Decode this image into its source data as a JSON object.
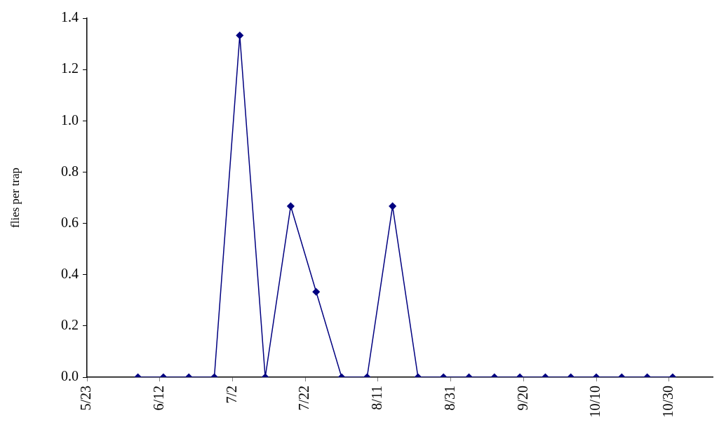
{
  "chart_data": {
    "type": "line",
    "ylabel": "flies per trap",
    "x": [
      "--06-06",
      "--06-13",
      "--06-20",
      "--06-27",
      "--07-04",
      "--07-11",
      "--07-18",
      "--07-25",
      "--08-01",
      "--08-08",
      "--08-15",
      "--08-22",
      "--08-29",
      "--09-05",
      "--09-12",
      "--09-19",
      "--09-26",
      "--10-03",
      "--10-10",
      "--10-17",
      "--10-24",
      "--10-31"
    ],
    "series": [
      {
        "color": "#000080",
        "values": [
          0,
          0,
          0,
          0,
          1.333,
          0,
          0.667,
          0.333,
          0,
          0,
          0.667,
          0,
          0,
          0,
          0,
          0,
          0,
          0,
          0,
          0,
          0,
          0
        ]
      }
    ],
    "xlim": [
      "--05-23",
      "--11-11"
    ],
    "xticks": [
      {
        "value": "--05-23",
        "label": "5/23"
      },
      {
        "value": "--06-12",
        "label": "6/12"
      },
      {
        "value": "--07-02",
        "label": "7/2"
      },
      {
        "value": "--07-22",
        "label": "7/22"
      },
      {
        "value": "--08-11",
        "label": "8/11"
      },
      {
        "value": "--08-31",
        "label": "8/31"
      },
      {
        "value": "--09-20",
        "label": "9/20"
      },
      {
        "value": "--10-10",
        "label": "10/10"
      },
      {
        "value": "--10-30",
        "label": "10/30"
      }
    ],
    "ylim": [
      0,
      1.4
    ],
    "yticks": [
      {
        "value": 0,
        "label": "0.0"
      },
      {
        "value": 0.2,
        "label": "0.2"
      },
      {
        "value": 0.4,
        "label": "0.4"
      },
      {
        "value": 0.6,
        "label": "0.6"
      },
      {
        "value": 0.8,
        "label": "0.8"
      },
      {
        "value": 1,
        "label": "1.0"
      },
      {
        "value": 1.2,
        "label": "1.2"
      },
      {
        "value": 1.4,
        "label": "1.4"
      }
    ],
    "marker": "diamond",
    "line_style": "solid",
    "grid": false,
    "legend": false
  }
}
